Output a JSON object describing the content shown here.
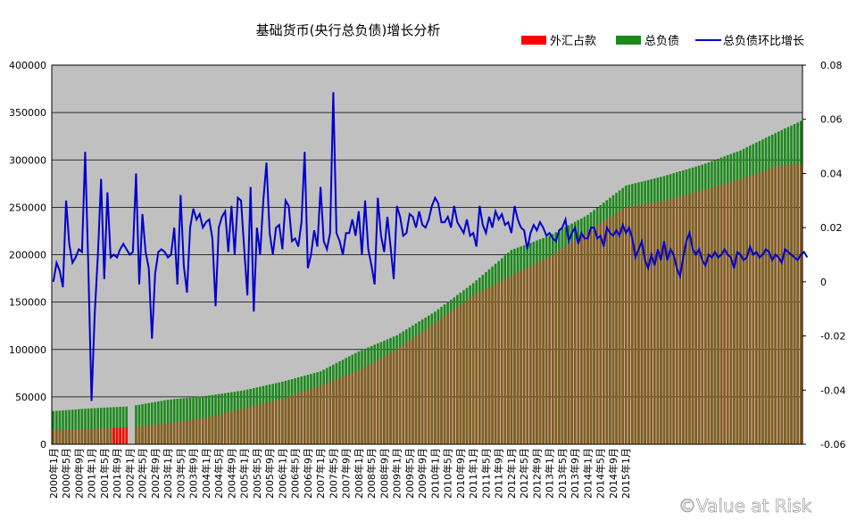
{
  "chart_data": {
    "type": "bar",
    "title": "基础货币(央行总负债)增长分析",
    "legend_position": "top-right",
    "grid": true,
    "plot_background": "#c0c0c0",
    "colors": {
      "fx": "#ff0000",
      "total": "#1a8a1a",
      "mom": "#0000cc"
    },
    "y_left": {
      "min": 0,
      "max": 400000,
      "ticks": [
        "0",
        "50000",
        "100000",
        "150000",
        "200000",
        "250000",
        "300000",
        "350000",
        "400000"
      ]
    },
    "y_right": {
      "min": -0.06,
      "max": 0.08,
      "ticks": [
        "-0.06",
        "-0.04",
        "-0.02",
        "0",
        "0.02",
        "0.04",
        "0.06",
        "0.08"
      ]
    },
    "x_labels": [
      "2000年1月",
      "2000年5月",
      "2000年9月",
      "2001年1月",
      "2001年5月",
      "2001年9月",
      "2002年1月",
      "2002年5月",
      "2002年9月",
      "2003年1月",
      "2003年5月",
      "2003年9月",
      "2004年1月",
      "2004年5月",
      "2004年9月",
      "2005年1月",
      "2005年5月",
      "2005年9月",
      "2006年1月",
      "2006年5月",
      "2006年9月",
      "2007年1月",
      "2007年5月",
      "2007年9月",
      "2008年1月",
      "2008年5月",
      "2008年9月",
      "2009年1月",
      "2009年5月",
      "2009年9月",
      "2010年1月",
      "2010年5月",
      "2010年9月",
      "2011年1月",
      "2011年5月",
      "2011年9月",
      "2012年1月",
      "2012年5月",
      "2012年9月",
      "2013年1月",
      "2013年5月",
      "2013年9月",
      "2014年1月",
      "2014年5月",
      "2014年9月",
      "2015年1月"
    ],
    "series": [
      {
        "name": "外汇占款",
        "kind": "bar",
        "anchors": [
          [
            0,
            15000
          ],
          [
            12,
            16000
          ],
          [
            24,
            18000
          ],
          [
            36,
            22000
          ],
          [
            48,
            28000
          ],
          [
            60,
            38000
          ],
          [
            72,
            48000
          ],
          [
            84,
            62000
          ],
          [
            96,
            78000
          ],
          [
            108,
            100000
          ],
          [
            120,
            128000
          ],
          [
            132,
            157000
          ],
          [
            144,
            178000
          ],
          [
            156,
            198000
          ],
          [
            168,
            225000
          ],
          [
            180,
            250000
          ],
          [
            192,
            257000
          ],
          [
            204,
            268000
          ],
          [
            216,
            280000
          ],
          [
            228,
            294000
          ],
          [
            235,
            296000
          ]
        ]
      },
      {
        "name": "总负债",
        "kind": "bar",
        "anchors": [
          [
            0,
            35000
          ],
          [
            12,
            38000
          ],
          [
            24,
            40000
          ],
          [
            36,
            47000
          ],
          [
            48,
            51000
          ],
          [
            60,
            57000
          ],
          [
            72,
            66000
          ],
          [
            84,
            77000
          ],
          [
            96,
            98000
          ],
          [
            108,
            115000
          ],
          [
            120,
            140000
          ],
          [
            132,
            170000
          ],
          [
            144,
            205000
          ],
          [
            156,
            220000
          ],
          [
            168,
            242000
          ],
          [
            180,
            273000
          ],
          [
            192,
            283000
          ],
          [
            204,
            295000
          ],
          [
            216,
            310000
          ],
          [
            228,
            330000
          ],
          [
            235,
            341000
          ]
        ]
      },
      {
        "name": "总负债环比增长",
        "kind": "line",
        "axis": "right",
        "values": [
          0,
          0.007,
          0.004,
          -0.002,
          0.03,
          0.014,
          0.007,
          0.009,
          0.012,
          0.011,
          0.048,
          0.005,
          -0.044,
          -0.012,
          0.01,
          0.038,
          0.001,
          0.033,
          0.009,
          0.01,
          0.009,
          0.012,
          0.014,
          0.012,
          0.01,
          0.011,
          0.04,
          -0.001,
          0.025,
          0.011,
          0.005,
          -0.021,
          0.003,
          0.011,
          0.012,
          0.011,
          0.009,
          0.01,
          0.02,
          -0.001,
          0.032,
          0.006,
          -0.004,
          0.02,
          0.027,
          0.023,
          0.025,
          0.02,
          0.022,
          0.023,
          0.016,
          -0.009,
          0.02,
          0.024,
          0.026,
          0.011,
          0.028,
          0.01,
          0.031,
          0.03,
          0.012,
          -0.005,
          0.035,
          -0.011,
          0.02,
          0.01,
          0.03,
          0.044,
          0.018,
          0.01,
          0.02,
          0.021,
          0.012,
          0.03,
          0.028,
          0.015,
          0.016,
          0.013,
          0.022,
          0.048,
          0.005,
          0.01,
          0.019,
          0.013,
          0.035,
          0.015,
          0.012,
          0.018,
          0.07,
          0.018,
          0.015,
          0.01,
          0.018,
          0.018,
          0.023,
          0.017,
          0.026,
          0.01,
          0.03,
          0.012,
          0.006,
          -0.001,
          0.031,
          0.017,
          0.011,
          0.024,
          0.013,
          0.001,
          0.028,
          0.024,
          0.017,
          0.018,
          0.025,
          0.024,
          0.02,
          0.026,
          0.021,
          0.02,
          0.023,
          0.028,
          0.031,
          0.029,
          0.022,
          0.022,
          0.024,
          0.02,
          0.028,
          0.022,
          0.02,
          0.018,
          0.023,
          0.017,
          0.018,
          0.013,
          0.028,
          0.021,
          0.018,
          0.024,
          0.02,
          0.026,
          0.023,
          0.025,
          0.021,
          0.022,
          0.018,
          0.028,
          0.023,
          0.02,
          0.019,
          0.012,
          0.018,
          0.021,
          0.019,
          0.022,
          0.02,
          0.017,
          0.018,
          0.016,
          0.015,
          0.019,
          0.02,
          0.023,
          0.015,
          0.018,
          0.02,
          0.014,
          0.018,
          0.016,
          0.016,
          0.02,
          0.02,
          0.016,
          0.017,
          0.013,
          0.02,
          0.018,
          0.017,
          0.019,
          0.017,
          0.021,
          0.018,
          0.02,
          0.016,
          0.009,
          0.012,
          0.015,
          0.008,
          0.005,
          0.01,
          0.006,
          0.012,
          0.008,
          0.015,
          0.008,
          0.012,
          0.01,
          0.005,
          0.002,
          0.009,
          0.015,
          0.018,
          0.012,
          0.01,
          0.012,
          0.008,
          0.006,
          0.01,
          0.009,
          0.011,
          0.009,
          0.01,
          0.012,
          0.01,
          0.009,
          0.005,
          0.011,
          0.01,
          0.008,
          0.009,
          0.013,
          0.01,
          0.011,
          0.009,
          0.01,
          0.012,
          0.011,
          0.008,
          0.01,
          0.009,
          0.007,
          0.012,
          0.011,
          0.01,
          0.009,
          0.008,
          0.01,
          0.011,
          0.009
        ]
      }
    ]
  },
  "watermark": "©Value at Risk"
}
